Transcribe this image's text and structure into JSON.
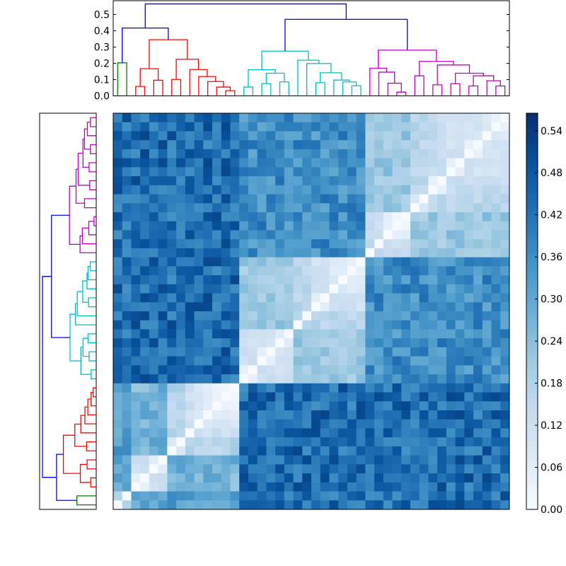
{
  "chart_data": {
    "type": "heatmap",
    "title": "",
    "n_leaves": 44,
    "leaf_order": "leaf 0 at left column / bottom row; leaf 43 at right column / top row",
    "colormap": "Blues",
    "colormap_stops": [
      "#f7fbff",
      "#deebf7",
      "#c6dbef",
      "#9ecae1",
      "#6baed6",
      "#4292c6",
      "#2171b5",
      "#08519c",
      "#08306b"
    ],
    "vmin": 0.0,
    "vmax": 0.565,
    "colorbar_ticks": [
      "0.00",
      "0.06",
      "0.12",
      "0.18",
      "0.24",
      "0.30",
      "0.36",
      "0.42",
      "0.48",
      "0.54"
    ],
    "dendrogram_yticks": [
      "0.0",
      "0.1",
      "0.2",
      "0.3",
      "0.4",
      "0.5"
    ],
    "dendrogram_ylim": [
      0,
      0.59
    ],
    "link_colors": {
      "above_threshold": "#0000ff",
      "green": "#008000",
      "red": "#ff0000",
      "cyan": "#00bfbf",
      "magenta": "#bf00bf"
    },
    "linkage_tree": {
      "h": 0.565,
      "c": [
        {
          "h": 0.417,
          "c": [
            {
              "h": 0.203,
              "color": "green",
              "c": [
                0,
                1
              ]
            },
            {
              "h": 0.345,
              "color": "red",
              "c": [
                {
                  "h": 0.167,
                  "c": [
                    {
                      "h": 0.058,
                      "c": [
                        2,
                        3
                      ]
                    },
                    {
                      "h": 0.096,
                      "c": [
                        4,
                        5
                      ]
                    }
                  ]
                },
                {
                  "h": 0.225,
                  "c": [
                    {
                      "h": 0.101,
                      "c": [
                        6,
                        7
                      ]
                    },
                    {
                      "h": 0.162,
                      "c": [
                        8,
                        {
                          "h": 0.119,
                          "c": [
                            9,
                            {
                              "h": 0.088,
                              "c": [
                                10,
                                {
                                  "h": 0.054,
                                  "c": [
                                    11,
                                    {
                                      "h": 0.032,
                                      "c": [
                                        12,
                                        13
                                      ]
                                    }
                                  ]
                                }
                              ]
                            }
                          ]
                        }
                      ]
                    }
                  ]
                }
              ]
            }
          ]
        },
        {
          "h": 0.47,
          "c": [
            {
              "h": 0.275,
              "color": "cyan",
              "c": [
                {
                  "h": 0.161,
                  "c": [
                    {
                      "h": 0.054,
                      "c": [
                        14,
                        15
                      ]
                    },
                    {
                      "h": 0.139,
                      "c": [
                        {
                          "h": 0.075,
                          "c": [
                            16,
                            17
                          ]
                        },
                        {
                          "h": 0.086,
                          "c": [
                            18,
                            19
                          ]
                        }
                      ]
                    }
                  ]
                },
                {
                  "h": 0.219,
                  "c": [
                    20,
                    {
                      "h": 0.199,
                      "c": [
                        21,
                        {
                          "h": 0.142,
                          "c": [
                            {
                              "h": 0.081,
                              "c": [
                                22,
                                23
                              ]
                            },
                            {
                              "h": 0.097,
                              "c": [
                                24,
                                {
                                  "h": 0.086,
                                  "c": [
                                    25,
                                    {
                                      "h": 0.062,
                                      "c": [
                                        26,
                                        27
                                      ]
                                    }
                                  ]
                                }
                              ]
                            }
                          ]
                        }
                      ]
                    }
                  ]
                }
              ]
            },
            {
              "h": 0.281,
              "color": "magenta",
              "c": [
                {
                  "h": 0.17,
                  "c": [
                    28,
                    {
                      "h": 0.146,
                      "c": [
                        29,
                        {
                          "h": 0.078,
                          "c": [
                            30,
                            {
                              "h": 0.023,
                              "c": [
                                31,
                                32
                              ]
                            }
                          ]
                        }
                      ]
                    }
                  ]
                },
                {
                  "h": 0.212,
                  "c": [
                    {
                      "h": 0.123,
                      "c": [
                        33,
                        34
                      ]
                    },
                    {
                      "h": 0.19,
                      "c": [
                        {
                          "h": 0.068,
                          "c": [
                            35,
                            36
                          ]
                        },
                        {
                          "h": 0.139,
                          "c": [
                            {
                              "h": 0.075,
                              "c": [
                                37,
                                38
                              ]
                            },
                            {
                              "h": 0.123,
                              "c": [
                                {
                                  "h": 0.061,
                                  "c": [
                                    39,
                                    40
                                  ]
                                },
                                {
                                  "h": 0.093,
                                  "c": [
                                    41,
                                    {
                                      "h": 0.061,
                                      "c": [
                                        42,
                                        43
                                      ]
                                    }
                                  ]
                                }
                              ]
                            }
                          ]
                        }
                      ]
                    }
                  ]
                }
              ]
            }
          ]
        }
      ]
    }
  }
}
